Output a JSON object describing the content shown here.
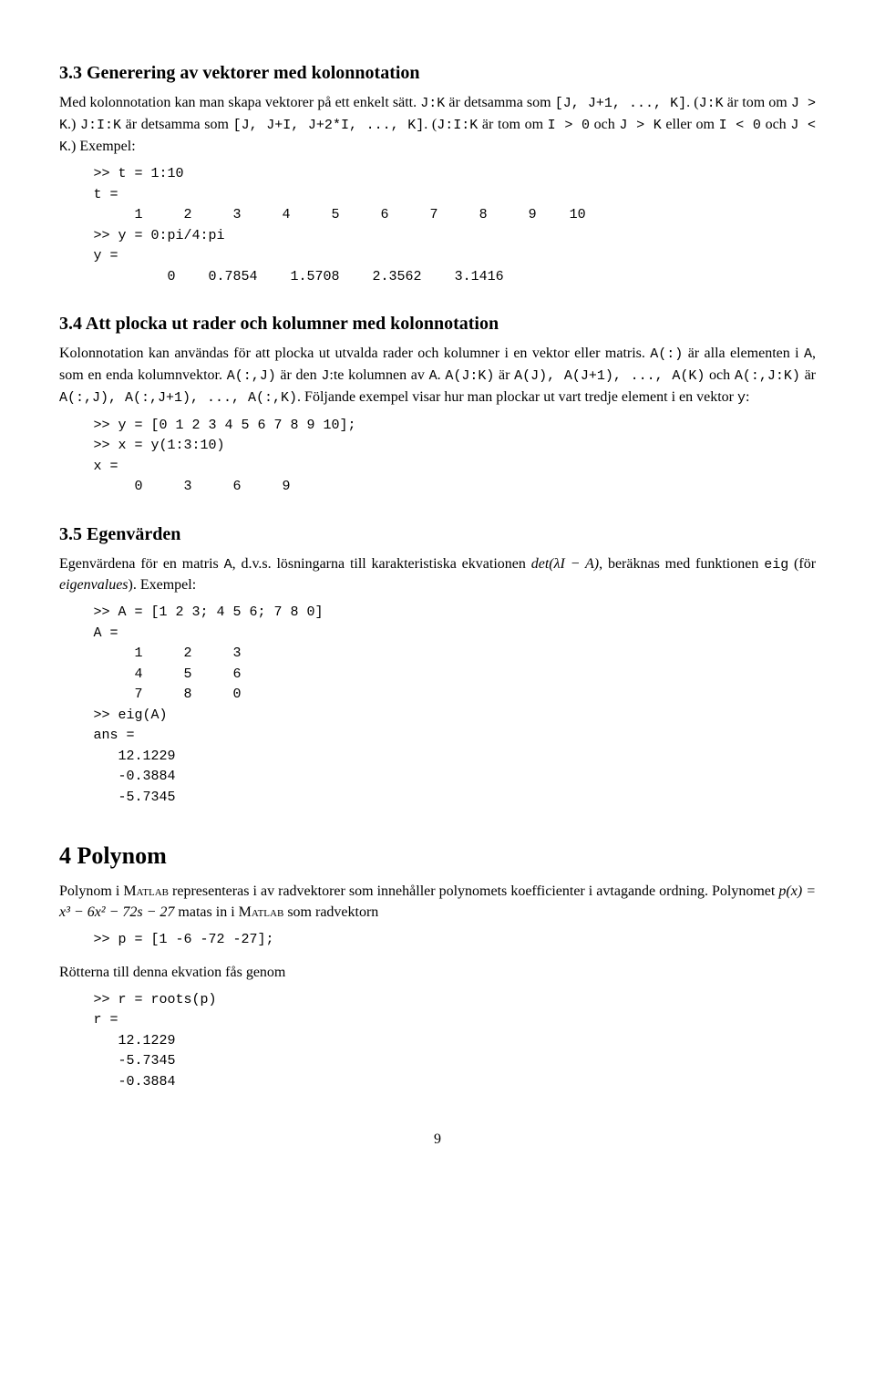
{
  "s33": {
    "heading": "3.3   Generering av vektorer med kolonnotation",
    "para": "Med kolonnotation kan man skapa vektorer på ett enkelt sätt. <c>J:K</c> är detsamma som <c>[J, J+1, ..., K]</c>. (<c>J:K</c> är tom om <c>J > K</c>.) <c>J:I:K</c> är detsamma som <c>[J, J+I, J+2*I, ..., K]</c>. (<c>J:I:K</c> är tom om <c>I > 0</c> och <c>J > K</c> eller om <c>I < 0</c> och <c>J < K</c>.) Exempel:",
    "code": ">> t = 1:10\nt =\n     1     2     3     4     5     6     7     8     9    10\n>> y = 0:pi/4:pi\ny =\n         0    0.7854    1.5708    2.3562    3.1416"
  },
  "s34": {
    "heading": "3.4   Att plocka ut rader och kolumner med kolonnotation",
    "para1": "Kolonnotation kan användas för att plocka ut utvalda rader och kolumner i en vektor eller matris. <c>A(:)</c> är alla elementen i <c>A</c>, som en enda kolumnvektor. <c>A(:,J)</c> är den <c>J</c>:te kolumnen av <c>A</c>. <c>A(J:K)</c> är <c>A(J), A(J+1), ..., A(K)</c> och <c>A(:,J:K)</c> är <c>A(:,J), A(:,J+1), ..., A(:,K)</c>. Följande exempel visar hur man plockar ut vart tredje element i en vektor <c>y</c>:",
    "code": ">> y = [0 1 2 3 4 5 6 7 8 9 10];\n>> x = y(1:3:10)\nx =\n     0     3     6     9"
  },
  "s35": {
    "heading": "3.5   Egenvärden",
    "para_pre": "Egenvärdena för en matris <c>A</c>, d.v.s. lösningarna till karakteristiska ekvationen ",
    "para_math": "det(λI − A)",
    "para_post": ", beräknas med funktionen <c>eig</c> (för <i>eigenvalues</i>). Exempel:",
    "code": ">> A = [1 2 3; 4 5 6; 7 8 0]\nA =\n     1     2     3\n     4     5     6\n     7     8     0\n>> eig(A)\nans =\n   12.1229\n   -0.3884\n   -5.7345"
  },
  "s4": {
    "heading": "4   Polynom",
    "para1_pre": "Polynom i M",
    "para1_sc1": "atlab",
    "para1_mid1": " representeras i av radvektorer som innehåller polynomets koefficienter i avtagande ordning. Polynomet ",
    "para1_math": "p(x) = x³ − 6x² − 72s − 27",
    "para1_mid2": " matas in i M",
    "para1_sc2": "atlab",
    "para1_post": " som radvektorn",
    "code1": ">> p = [1 -6 -72 -27];",
    "para2": "Rötterna till denna ekvation fås genom",
    "code2": ">> r = roots(p)\nr =\n   12.1229\n   -5.7345\n   -0.3884"
  },
  "page_number": "9"
}
